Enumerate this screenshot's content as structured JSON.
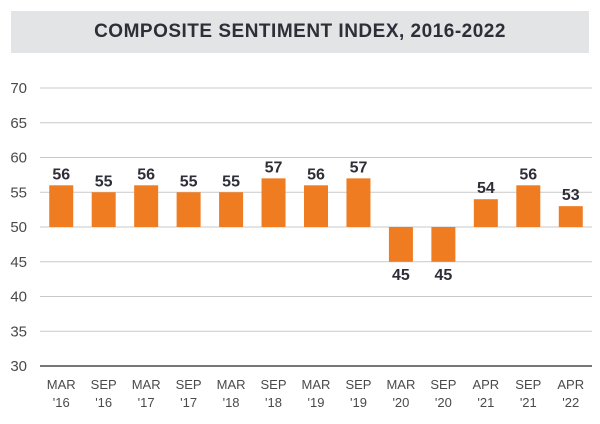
{
  "chart_data": {
    "type": "bar",
    "title": "COMPOSITE SENTIMENT INDEX, 2016-2022",
    "baseline": 50,
    "ylim": [
      30,
      70
    ],
    "yticks": [
      "30",
      "35",
      "40",
      "45",
      "50",
      "55",
      "60",
      "65",
      "70"
    ],
    "categories": [
      [
        "MAR",
        "'16"
      ],
      [
        "SEP",
        "'16"
      ],
      [
        "MAR",
        "'17"
      ],
      [
        "SEP",
        "'17"
      ],
      [
        "MAR",
        "'18"
      ],
      [
        "SEP",
        "'18"
      ],
      [
        "MAR",
        "'19"
      ],
      [
        "SEP",
        "'19"
      ],
      [
        "MAR",
        "'20"
      ],
      [
        "SEP",
        "'20"
      ],
      [
        "APR",
        "'21"
      ],
      [
        "SEP",
        "'21"
      ],
      [
        "APR",
        "'22"
      ]
    ],
    "values": [
      56,
      55,
      56,
      55,
      55,
      57,
      56,
      57,
      45,
      45,
      54,
      56,
      53
    ],
    "data_labels": [
      "56",
      "55",
      "56",
      "55",
      "55",
      "57",
      "56",
      "57",
      "45",
      "45",
      "54",
      "56",
      "53"
    ],
    "bar_color": "#f07c22",
    "grid": true
  }
}
